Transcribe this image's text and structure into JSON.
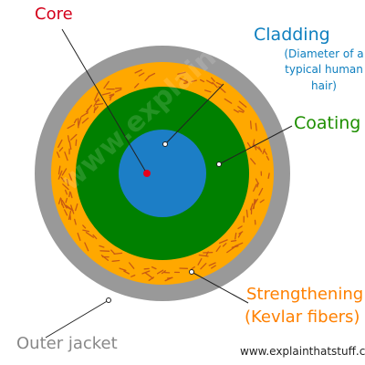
{
  "labels": {
    "core": "Core",
    "cladding": "Cladding",
    "cladding_note": "(Diameter of a typical human hair)",
    "coating": "Coating",
    "strengthening": "Strengthening",
    "strengthening_note": "(Kevlar fibers)",
    "outer_jacket": "Outer jacket"
  },
  "credit": "www.explainthatstuff.com",
  "watermark": "www.explainthatstuff.com",
  "colors": {
    "core": "#d4001a",
    "cladding": "#0e7fbf",
    "coating": "#1e8f00",
    "strengthening": "#ff8000",
    "outer_jacket": "#888888",
    "layer_outer_jacket": "#999999",
    "layer_strengthening": "#ffa800",
    "layer_kevlar_fibers": "#c85a12",
    "layer_coating": "#008000",
    "layer_cladding": "#1c7ec6",
    "layer_core": "#e8001a",
    "text_dark": "#222222"
  }
}
